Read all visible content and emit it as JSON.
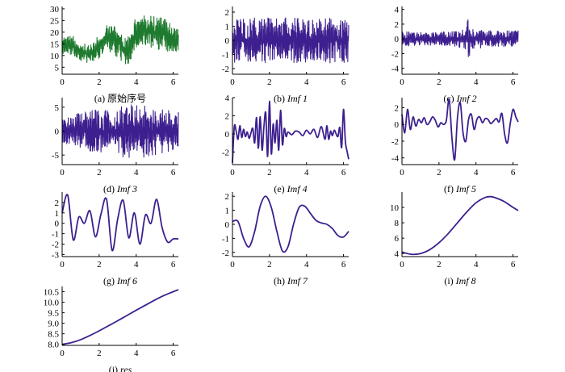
{
  "colors": {
    "signal": "#1e7a2e",
    "component": "#3d1f8f",
    "axis": "#000000"
  },
  "chart_data": [
    {
      "id": "a",
      "type": "line",
      "caption": {
        "prefix": "(a)",
        "text": "原始序号",
        "italic": ""
      },
      "series": [
        {
          "color": "#1e7a2e",
          "style": "noise",
          "x": [
            0,
            0.5,
            1.0,
            1.5,
            2.0,
            2.5,
            3.0,
            3.5,
            4.0,
            4.5,
            5.0,
            5.5,
            6.0,
            6.28
          ],
          "center": [
            15,
            14,
            12,
            10,
            14,
            18,
            16,
            11,
            20,
            21,
            20,
            19,
            17,
            16
          ],
          "amplitude": [
            4,
            5,
            4,
            4,
            5,
            6,
            7,
            6,
            7,
            7,
            7,
            7,
            6,
            5
          ]
        }
      ],
      "xlim": [
        0,
        6.28
      ],
      "ylim": [
        2,
        31
      ],
      "xticks": [
        "0",
        "2",
        "4",
        "6"
      ],
      "xtick_values": [
        0,
        2,
        4,
        6
      ],
      "yticks": [
        "5",
        "10",
        "15",
        "20",
        "25",
        "30"
      ],
      "ytick_values": [
        5,
        10,
        15,
        20,
        25,
        30
      ]
    },
    {
      "id": "b",
      "type": "line",
      "caption": {
        "prefix": "(b)",
        "text": "",
        "italic": "Imf 1"
      },
      "series": [
        {
          "color": "#3d1f8f",
          "style": "noise",
          "x": [
            0,
            6.28
          ],
          "center": [
            0,
            0
          ],
          "amplitude": [
            1.6,
            1.6
          ]
        }
      ],
      "xlim": [
        0,
        6.28
      ],
      "ylim": [
        -2.4,
        2.4
      ],
      "xticks": [
        "0",
        "2",
        "4",
        "6"
      ],
      "xtick_values": [
        0,
        2,
        4,
        6
      ],
      "yticks": [
        "-2",
        "-1",
        "0",
        "1",
        "2"
      ],
      "ytick_values": [
        -2,
        -1,
        0,
        1,
        2
      ]
    },
    {
      "id": "c",
      "type": "line",
      "caption": {
        "prefix": "(c)",
        "text": "",
        "italic": "Imf 2"
      },
      "series": [
        {
          "color": "#3d1f8f",
          "style": "noise",
          "x": [
            0,
            1.0,
            2.0,
            3.0,
            3.5,
            3.6,
            3.8,
            4.5,
            6.28
          ],
          "center": [
            0,
            0,
            0,
            0,
            0,
            0,
            0,
            0,
            0
          ],
          "amplitude": [
            1.0,
            0.9,
            0.9,
            1.1,
            1.6,
            3.8,
            1.5,
            1.1,
            1.2
          ]
        }
      ],
      "xlim": [
        0,
        6.28
      ],
      "ylim": [
        -4.8,
        4.4
      ],
      "xticks": [
        "0",
        "2",
        "4",
        "6"
      ],
      "xtick_values": [
        0,
        2,
        4,
        6
      ],
      "yticks": [
        "-4",
        "-2",
        "0",
        "2",
        "4"
      ],
      "ytick_values": [
        -4,
        -2,
        0,
        2,
        4
      ]
    },
    {
      "id": "d",
      "type": "line",
      "caption": {
        "prefix": "(d)",
        "text": "",
        "italic": "Imf 3"
      },
      "series": [
        {
          "color": "#3d1f8f",
          "style": "noise",
          "x": [
            0,
            0.5,
            1.0,
            1.5,
            2.0,
            2.5,
            2.7,
            3.0,
            3.5,
            4.0,
            4.5,
            5.0,
            5.5,
            6.28
          ],
          "center": [
            0,
            0,
            0,
            0,
            0,
            0,
            0,
            0,
            0,
            0,
            0,
            0,
            0,
            0
          ],
          "amplitude": [
            2.5,
            3.0,
            4.0,
            4.5,
            4.5,
            4.5,
            1.0,
            5.5,
            5.5,
            5.5,
            5.5,
            5.0,
            4.5,
            4.0
          ]
        }
      ],
      "xlim": [
        0,
        6.28
      ],
      "ylim": [
        -7,
        7
      ],
      "xticks": [
        "0",
        "2",
        "4",
        "6"
      ],
      "xtick_values": [
        0,
        2,
        4,
        6
      ],
      "yticks": [
        "-5",
        "0",
        "5"
      ],
      "ytick_values": [
        -5,
        0,
        5
      ]
    },
    {
      "id": "e",
      "type": "line",
      "caption": {
        "prefix": "(e)",
        "text": "",
        "italic": "Imf 4"
      },
      "series": [
        {
          "color": "#3d1f8f",
          "style": "smooth",
          "x": [
            0,
            0.1,
            0.2,
            0.3,
            0.4,
            0.5,
            0.6,
            0.7,
            0.8,
            0.9,
            1.0,
            1.1,
            1.2,
            1.3,
            1.4,
            1.5,
            1.6,
            1.7,
            1.8,
            1.9,
            2.0,
            2.1,
            2.2,
            2.3,
            2.4,
            2.5,
            2.6,
            2.7,
            2.8,
            2.9,
            3.0,
            3.2,
            3.4,
            3.6,
            3.8,
            4.0,
            4.2,
            4.4,
            4.6,
            4.8,
            5.0,
            5.1,
            5.2,
            5.3,
            5.4,
            5.5,
            5.6,
            5.7,
            5.8,
            5.9,
            6.0,
            6.1,
            6.2,
            6.28
          ],
          "y": [
            -3.2,
            0.8,
            0.3,
            -0.6,
            0.9,
            -0.4,
            0.5,
            -0.3,
            0.2,
            -0.5,
            0.1,
            0.6,
            -1.0,
            1.8,
            -1.6,
            1.9,
            -1.8,
            0.8,
            2.3,
            -2.5,
            3.6,
            -2.2,
            1.1,
            -1.0,
            1.5,
            -1.8,
            2.6,
            -1.2,
            0.6,
            -0.3,
            0.2,
            -0.1,
            0.3,
            0.2,
            -0.2,
            0.4,
            0.0,
            0.5,
            -0.4,
            0.8,
            -0.6,
            0.9,
            -0.6,
            0.3,
            -0.2,
            0.4,
            0.0,
            -0.3,
            0.7,
            -1.5,
            2.7,
            -0.8,
            -2.0,
            -2.8
          ]
        }
      ],
      "xlim": [
        0,
        6.28
      ],
      "ylim": [
        -3.4,
        4.0
      ],
      "xticks": [
        "0",
        "2",
        "4",
        "6"
      ],
      "xtick_values": [
        0,
        2,
        4,
        6
      ],
      "yticks": [
        "-2",
        "0",
        "2",
        "4"
      ],
      "ytick_values": [
        -2,
        0,
        2,
        4
      ]
    },
    {
      "id": "f",
      "type": "line",
      "caption": {
        "prefix": "(f)",
        "text": "",
        "italic": "Imf 5"
      },
      "series": [
        {
          "color": "#3d1f8f",
          "style": "smooth",
          "x": [
            0,
            0.15,
            0.3,
            0.45,
            0.6,
            0.75,
            0.9,
            1.05,
            1.2,
            1.35,
            1.5,
            1.65,
            1.8,
            1.95,
            2.1,
            2.25,
            2.4,
            2.55,
            2.7,
            2.85,
            3.0,
            3.15,
            3.3,
            3.45,
            3.6,
            3.75,
            3.9,
            4.05,
            4.2,
            4.35,
            4.5,
            4.65,
            4.8,
            4.95,
            5.1,
            5.25,
            5.4,
            5.55,
            5.7,
            5.85,
            6.0,
            6.15,
            6.28
          ],
          "y": [
            1.2,
            -1.0,
            1.8,
            -0.6,
            0.9,
            -0.2,
            0.6,
            0.2,
            0.8,
            0.0,
            0.3,
            0.9,
            0.5,
            -0.3,
            0.2,
            0.0,
            0.5,
            3.0,
            -1.6,
            -4.2,
            0.8,
            2.6,
            -1.0,
            -2.0,
            0.6,
            1.2,
            -0.6,
            0.6,
            0.9,
            0.2,
            0.7,
            0.6,
            0.1,
            0.4,
            0.7,
            0.3,
            1.3,
            -1.2,
            -2.2,
            0.1,
            1.8,
            0.9,
            0.3
          ]
        }
      ],
      "xlim": [
        0,
        6.28
      ],
      "ylim": [
        -4.8,
        3.2
      ],
      "xticks": [
        "0",
        "2",
        "4",
        "6"
      ],
      "xtick_values": [
        0,
        2,
        4,
        6
      ],
      "yticks": [
        "-4",
        "-2",
        "0",
        "2"
      ],
      "ytick_values": [
        -4,
        -2,
        0,
        2
      ]
    },
    {
      "id": "g",
      "type": "line",
      "caption": {
        "prefix": "(g)",
        "text": "",
        "italic": "Imf 6"
      },
      "series": [
        {
          "color": "#3d1f8f",
          "style": "smooth",
          "x": [
            0,
            0.3,
            0.6,
            0.9,
            1.2,
            1.5,
            1.8,
            2.1,
            2.4,
            2.7,
            3.0,
            3.3,
            3.6,
            3.9,
            4.2,
            4.5,
            4.8,
            5.1,
            5.4,
            5.7,
            6.0,
            6.28
          ],
          "y": [
            1.0,
            2.7,
            -1.6,
            0.6,
            0.0,
            1.2,
            -1.3,
            0.9,
            2.3,
            -2.6,
            0.4,
            2.2,
            -1.4,
            1.0,
            -2.0,
            0.8,
            0.0,
            2.3,
            -0.4,
            -1.8,
            -1.5,
            -1.5
          ]
        }
      ],
      "xlim": [
        0,
        6.28
      ],
      "ylim": [
        -3.2,
        3.0
      ],
      "xticks": [
        "0",
        "2",
        "4",
        "6"
      ],
      "xtick_values": [
        0,
        2,
        4,
        6
      ],
      "yticks": [
        "-3",
        "-2",
        "-1",
        "0",
        "1",
        "2"
      ],
      "ytick_values": [
        -3,
        -2,
        -1,
        0,
        1,
        2
      ]
    },
    {
      "id": "h",
      "type": "line",
      "caption": {
        "prefix": "(h)",
        "text": "",
        "italic": "Imf 7"
      },
      "series": [
        {
          "color": "#3d1f8f",
          "style": "smooth",
          "x": [
            0,
            0.3,
            0.6,
            0.9,
            1.2,
            1.5,
            1.8,
            2.1,
            2.4,
            2.7,
            3.0,
            3.3,
            3.6,
            3.9,
            4.2,
            4.5,
            4.8,
            5.1,
            5.4,
            5.7,
            6.0,
            6.28
          ],
          "y": [
            0.2,
            0.2,
            -1.0,
            -1.6,
            -0.5,
            1.3,
            2.0,
            1.2,
            -0.5,
            -1.9,
            -1.6,
            0.0,
            1.2,
            1.3,
            0.8,
            0.3,
            0.1,
            0.0,
            -0.3,
            -0.8,
            -0.9,
            -0.5
          ]
        }
      ],
      "xlim": [
        0,
        6.28
      ],
      "ylim": [
        -2.3,
        2.3
      ],
      "xticks": [
        "0",
        "2",
        "4",
        "6"
      ],
      "xtick_values": [
        0,
        2,
        4,
        6
      ],
      "yticks": [
        "-2",
        "-1",
        "0",
        "1",
        "2"
      ],
      "ytick_values": [
        -2,
        -1,
        0,
        1,
        2
      ]
    },
    {
      "id": "i",
      "type": "line",
      "caption": {
        "prefix": "(i)",
        "text": "",
        "italic": "Imf 8"
      },
      "series": [
        {
          "color": "#3d1f8f",
          "style": "smooth",
          "x": [
            0,
            0.5,
            1.0,
            1.5,
            2.0,
            2.5,
            3.0,
            3.5,
            4.0,
            4.5,
            4.8,
            5.0,
            5.5,
            6.0,
            6.28
          ],
          "y": [
            4.2,
            3.9,
            4.0,
            4.5,
            5.4,
            6.6,
            8.0,
            9.4,
            10.6,
            11.3,
            11.4,
            11.3,
            10.8,
            10.0,
            9.6
          ]
        }
      ],
      "xlim": [
        0,
        6.28
      ],
      "ylim": [
        3.6,
        12
      ],
      "xticks": [
        "0",
        "2",
        "4",
        "6"
      ],
      "xtick_values": [
        0,
        2,
        4,
        6
      ],
      "yticks": [
        "4",
        "6",
        "8",
        "10"
      ],
      "ytick_values": [
        4,
        6,
        8,
        10
      ]
    },
    {
      "id": "j",
      "type": "line",
      "caption": {
        "prefix": "(j)",
        "text": "",
        "italic": "res"
      },
      "series": [
        {
          "color": "#3d1f8f",
          "style": "smooth",
          "x": [
            0,
            0.5,
            1.0,
            1.5,
            2.0,
            2.5,
            3.0,
            3.5,
            4.0,
            4.5,
            5.0,
            5.5,
            6.0,
            6.28
          ],
          "y": [
            8.0,
            8.08,
            8.22,
            8.42,
            8.64,
            8.88,
            9.12,
            9.37,
            9.62,
            9.86,
            10.1,
            10.32,
            10.5,
            10.6
          ]
        }
      ],
      "xlim": [
        0,
        6.28
      ],
      "ylim": [
        7.95,
        10.75
      ],
      "xticks": [
        "0",
        "2",
        "4",
        "6"
      ],
      "xtick_values": [
        0,
        2,
        4,
        6
      ],
      "yticks": [
        "8.0",
        "8.5",
        "9.0",
        "9.5",
        "10.0",
        "10.5"
      ],
      "ytick_values": [
        8.0,
        8.5,
        9.0,
        9.5,
        10.0,
        10.5
      ]
    }
  ]
}
